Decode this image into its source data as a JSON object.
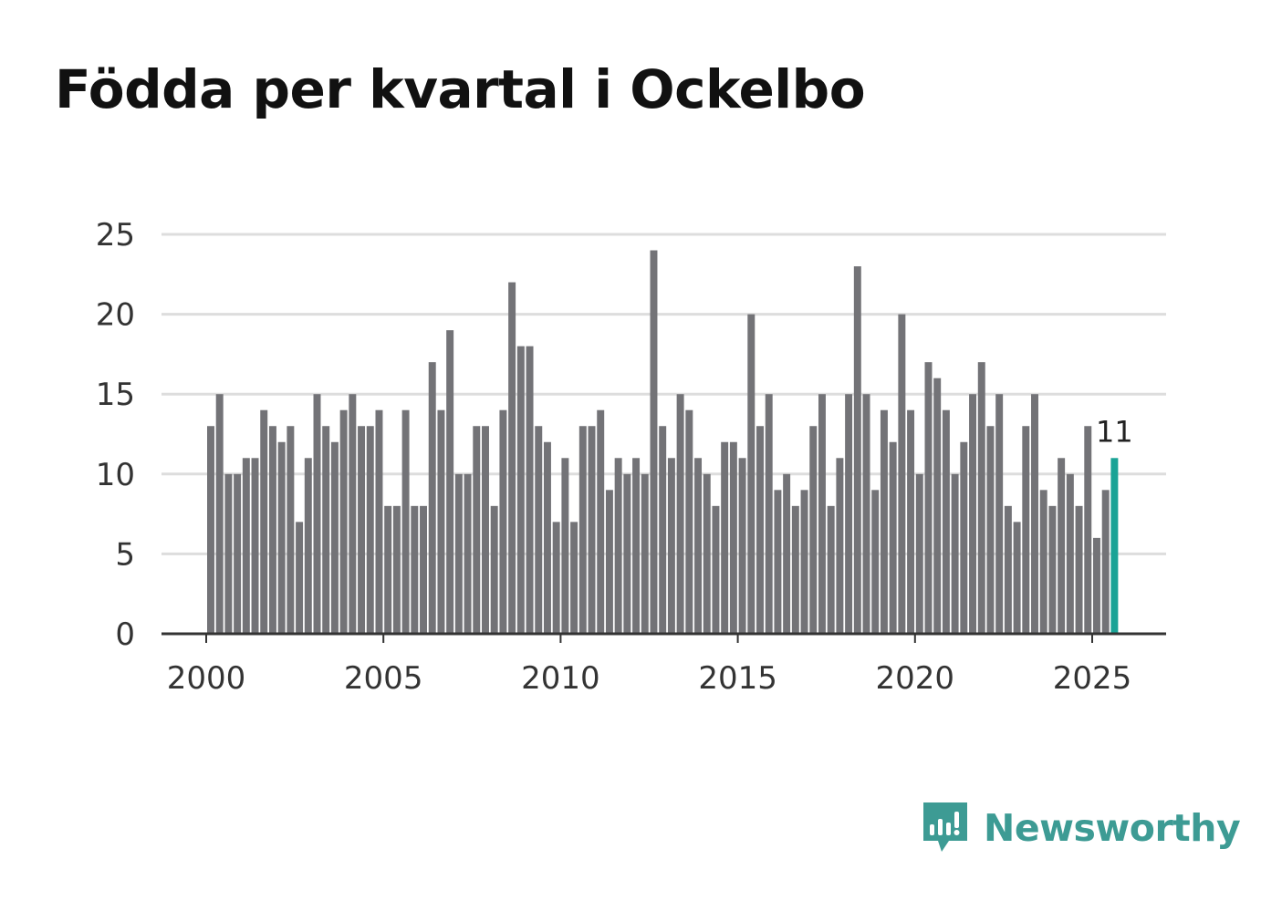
{
  "chart_data": {
    "type": "bar",
    "title": "Födda per kvartal i Ockelbo",
    "xlabel": "",
    "ylabel": "",
    "ylim": [
      0,
      25
    ],
    "yticks": [
      0,
      5,
      10,
      15,
      20,
      25
    ],
    "xticks": [
      2000,
      2005,
      2010,
      2015,
      2020,
      2025
    ],
    "x_start": 2000,
    "x_end": 2027,
    "first_quarter_start": 2000,
    "periods_per_year": 4,
    "grid": true,
    "values": [
      13,
      15,
      10,
      10,
      11,
      11,
      14,
      13,
      12,
      13,
      7,
      11,
      15,
      13,
      12,
      14,
      15,
      13,
      13,
      14,
      8,
      8,
      14,
      8,
      8,
      17,
      14,
      19,
      10,
      10,
      13,
      13,
      8,
      14,
      22,
      18,
      18,
      13,
      12,
      7,
      11,
      7,
      13,
      13,
      14,
      9,
      11,
      10,
      11,
      10,
      24,
      13,
      11,
      15,
      14,
      11,
      10,
      8,
      12,
      12,
      11,
      20,
      13,
      15,
      9,
      10,
      8,
      9,
      13,
      15,
      8,
      11,
      15,
      23,
      15,
      9,
      14,
      12,
      20,
      14,
      10,
      17,
      16,
      14,
      10,
      12,
      15,
      17,
      13,
      15,
      8,
      7,
      13,
      15,
      9,
      8,
      11,
      10,
      8,
      13,
      6,
      9,
      11
    ],
    "highlight": {
      "index": 102,
      "value": 11,
      "label": "11"
    },
    "colors": {
      "bar": "#737377",
      "highlight": "#1aa396",
      "grid": "#dddddd",
      "axis": "#333333"
    }
  },
  "logo": {
    "text": "Newsworthy",
    "icon": "newsworthy-chart-bubble-icon",
    "color": "#3d9b94"
  }
}
